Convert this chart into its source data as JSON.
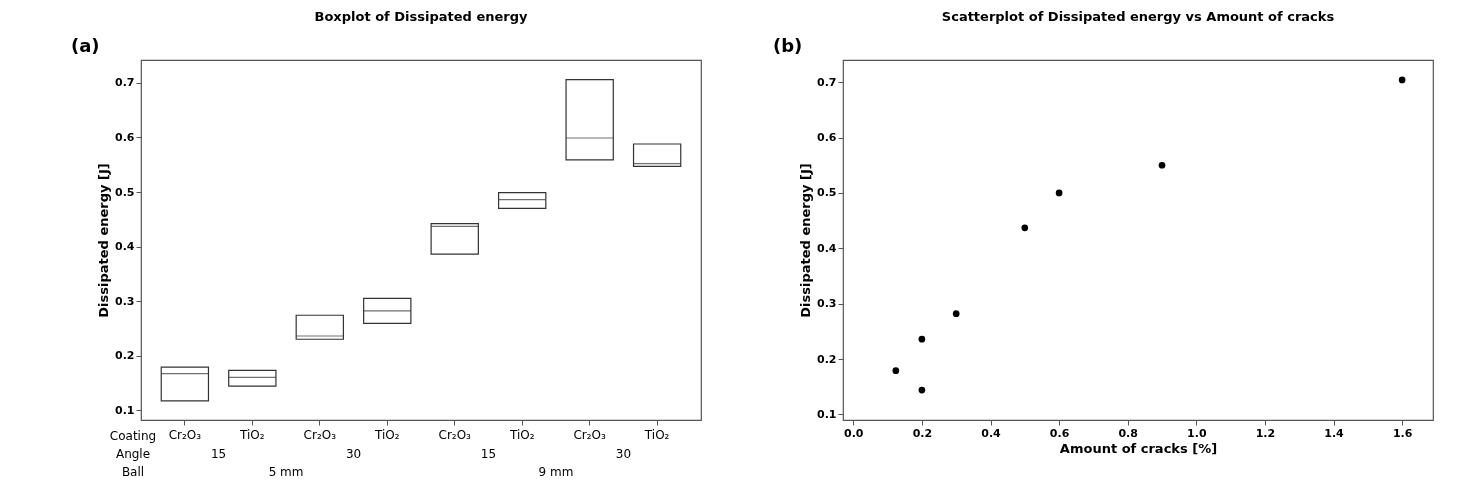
{
  "chart_data": [
    {
      "type": "box",
      "title": "Boxplot of Dissipated energy",
      "ylabel": "Dissipated energy [J]",
      "categories": [
        "Cr₂O₃",
        "TiO₂",
        "Cr₂O₃",
        "TiO₂",
        "Cr₂O₃",
        "TiO₂",
        "Cr₂O₃",
        "TiO₂"
      ],
      "series": [
        {
          "color": "#333333",
          "boxes": [
            {
              "low": 0.117,
              "q1": 0.117,
              "median": 0.167,
              "q3": 0.179,
              "high": 0.179
            },
            {
              "low": 0.144,
              "q1": 0.144,
              "median": 0.16,
              "q3": 0.173,
              "high": 0.173
            },
            {
              "low": 0.23,
              "q1": 0.23,
              "median": 0.236,
              "q3": 0.274,
              "high": 0.274
            },
            {
              "low": 0.259,
              "q1": 0.259,
              "median": 0.282,
              "q3": 0.305,
              "high": 0.305
            },
            {
              "low": 0.386,
              "q1": 0.386,
              "median": 0.437,
              "q3": 0.442,
              "high": 0.442
            },
            {
              "low": 0.47,
              "q1": 0.47,
              "median": 0.486,
              "q3": 0.499,
              "high": 0.499
            },
            {
              "low": 0.559,
              "q1": 0.559,
              "median": 0.599,
              "q3": 0.706,
              "high": 0.706
            },
            {
              "low": 0.547,
              "q1": 0.547,
              "median": 0.552,
              "q3": 0.588,
              "high": 0.588
            }
          ]
        }
      ],
      "ylim": [
        0.082,
        0.742
      ],
      "yticks": [
        0.1,
        0.2,
        0.3,
        0.4,
        0.5,
        0.6,
        0.7
      ],
      "grid": false,
      "annotations": [
        "(a)",
        "Coating",
        "Angle",
        "15",
        "30",
        "15",
        "30",
        "Ball",
        "5 mm",
        "9 mm"
      ]
    },
    {
      "type": "scatter",
      "title": "Scatterplot of Dissipated energy vs Amount of cracks",
      "xlabel": "Amount of cracks [%]",
      "ylabel": "Dissipated energy [J]",
      "series": [
        {
          "color": "#000000",
          "x": [
            0.124,
            0.2,
            0.2,
            0.3,
            0.5,
            0.6,
            0.9,
            1.6
          ],
          "values": [
            0.179,
            0.236,
            0.144,
            0.282,
            0.437,
            0.5,
            0.55,
            0.704
          ]
        }
      ],
      "xlim": [
        -0.03,
        1.69
      ],
      "xticks": [
        {
          "value": 0,
          "label": "0.0"
        },
        0.2,
        0.4,
        0.6,
        0.8,
        {
          "value": 1,
          "label": "1.0"
        },
        1.2,
        1.4,
        1.6
      ],
      "ylim": [
        0.09,
        0.74
      ],
      "yticks": [
        0.1,
        0.2,
        0.3,
        0.4,
        0.5,
        0.6,
        0.7
      ],
      "grid": false,
      "marker": "circle",
      "annotations": [
        "(b)"
      ]
    }
  ]
}
